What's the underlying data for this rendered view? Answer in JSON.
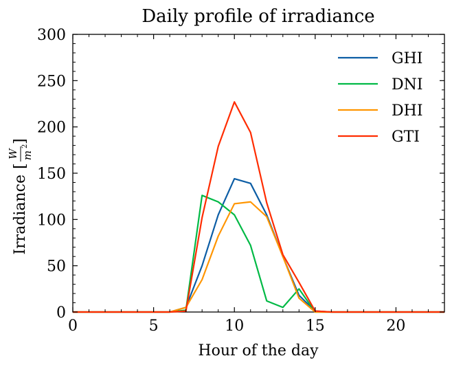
{
  "chart_data": {
    "type": "line",
    "title": "Daily profile of irradiance",
    "xlabel": "Hour of the day",
    "ylabel": "Irradiance [W/m²]",
    "ylabel_prefix": "Irradiance",
    "ylabel_unit_num": "W",
    "ylabel_unit_den": "m",
    "ylabel_unit_exp": "2",
    "xlim": [
      0,
      23
    ],
    "ylim": [
      0,
      300
    ],
    "xticks": [
      0,
      5,
      10,
      15,
      20
    ],
    "yticks": [
      0,
      50,
      100,
      150,
      200,
      250,
      300
    ],
    "xtick_labels": [
      "0",
      "5",
      "10",
      "15",
      "20"
    ],
    "ytick_labels": [
      "0",
      "50",
      "100",
      "150",
      "200",
      "250",
      "300"
    ],
    "grid": false,
    "legend_position": "top-right",
    "x": [
      0,
      1,
      2,
      3,
      4,
      5,
      6,
      7,
      8,
      9,
      10,
      11,
      12,
      13,
      14,
      15,
      16,
      17,
      18,
      19,
      20,
      21,
      22,
      23
    ],
    "series": [
      {
        "name": "GHI",
        "color": "#0C5DA5",
        "values": [
          0,
          0,
          0,
          0,
          0,
          0,
          0,
          5,
          50,
          105,
          144,
          139,
          105,
          60,
          18,
          1,
          0,
          0,
          0,
          0,
          0,
          0,
          0,
          0
        ]
      },
      {
        "name": "DNI",
        "color": "#00B945",
        "values": [
          0,
          0,
          0,
          0,
          0,
          0,
          0,
          2,
          126,
          119,
          105,
          72,
          12,
          5,
          25,
          0,
          0,
          0,
          0,
          0,
          0,
          0,
          0,
          0
        ]
      },
      {
        "name": "DHI",
        "color": "#FF9500",
        "values": [
          0,
          0,
          0,
          0,
          0,
          0,
          0,
          5,
          35,
          82,
          117,
          119,
          103,
          60,
          15,
          0,
          0,
          0,
          0,
          0,
          0,
          0,
          0,
          0
        ]
      },
      {
        "name": "GTI",
        "color": "#FF2C00",
        "values": [
          0,
          0,
          0,
          0,
          0,
          0,
          0,
          1,
          102,
          179,
          227,
          194,
          118,
          62,
          32,
          1,
          0,
          0,
          0,
          0,
          0,
          0,
          0,
          0
        ]
      }
    ]
  }
}
